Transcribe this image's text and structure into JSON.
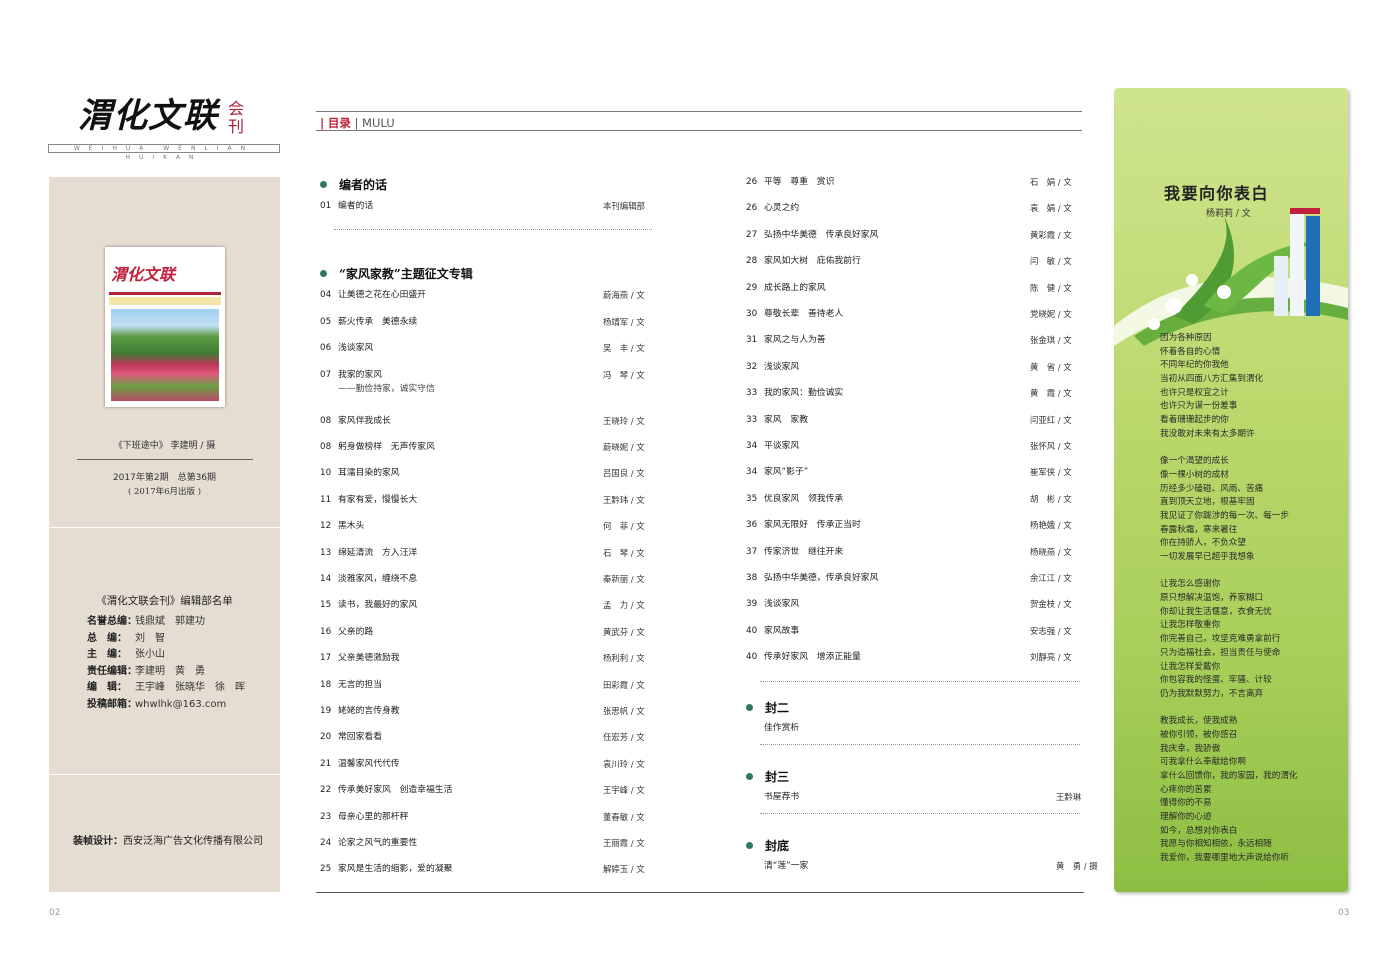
{
  "logo": {
    "main": "渭化文联",
    "side": "会刊",
    "sub": "WEIHUA WENLIAN HUIKAN"
  },
  "cover_mini": {
    "title": "渭化文联"
  },
  "sidebar": {
    "photo_credit": "《下班途中》 李建明 / 摄",
    "issue": "2017年第2期　总第36期",
    "issue_date": "( 2017年6月出版 )",
    "staff_title": "《渭化文联会刊》编辑部名单",
    "staff": [
      {
        "k": "名誉总编：",
        "v": "钱鼎斌　郭建功"
      },
      {
        "k": "总　编：",
        "v": "刘　智"
      },
      {
        "k": "主　编：",
        "v": "张小山"
      },
      {
        "k": "责任编辑：",
        "v": "李建明　黄　勇"
      },
      {
        "k": "编　辑：",
        "v": "王宇峰　张晓华　徐　晖"
      },
      {
        "k": "投稿邮箱：",
        "v": "whwlhk@163.com"
      }
    ],
    "design_label": "装帧设计：",
    "design_value": "西安泛海广告文化传播有限公司"
  },
  "header": {
    "cn": "目录",
    "en": "MULU"
  },
  "toc_left": {
    "sections": [
      {
        "title": "编者的话",
        "items": [
          {
            "no": "01",
            "title": "编者的话",
            "author": "本刊编辑部"
          }
        ]
      },
      {
        "title": "“家风家教”主题征文专辑",
        "items": [
          {
            "no": "04",
            "title": "让美德之花在心田盛开",
            "author": "蔚海燕 / 文"
          },
          {
            "no": "05",
            "title": "薪火传承　美德永续",
            "author": "杨靖军 / 文"
          },
          {
            "no": "06",
            "title": "浅谈家风",
            "author": "吴　丰 / 文"
          },
          {
            "no": "07",
            "title": "我家的家风",
            "author": "冯　琴 / 文",
            "sub": "——勤俭持家，诚实守信"
          },
          {
            "no": "08",
            "title": "家风伴我成长",
            "author": "王晓玲 / 文"
          },
          {
            "no": "08",
            "title": "躬身做榜样　无声传家风",
            "author": "蔚晓妮 / 文"
          },
          {
            "no": "10",
            "title": "耳濡目染的家风",
            "author": "吕国良 / 文"
          },
          {
            "no": "11",
            "title": "有家有爱，慢慢长大",
            "author": "王黔玮 / 文"
          },
          {
            "no": "12",
            "title": "黑木头",
            "author": "何　菲 / 文"
          },
          {
            "no": "13",
            "title": "绵延清流　方入汪洋",
            "author": "石　琴 / 文"
          },
          {
            "no": "14",
            "title": "淡雅家风，缠绕不息",
            "author": "秦新丽 / 文"
          },
          {
            "no": "15",
            "title": "读书，我最好的家风",
            "author": "孟　力 / 文"
          },
          {
            "no": "16",
            "title": "父亲的路",
            "author": "黄武芬 / 文"
          },
          {
            "no": "17",
            "title": "父亲美德激励我",
            "author": "杨利利 / 文"
          },
          {
            "no": "18",
            "title": "无言的担当",
            "author": "田彩霞 / 文"
          },
          {
            "no": "19",
            "title": "姥姥的言传身教",
            "author": "张思帆 / 文"
          },
          {
            "no": "20",
            "title": "常回家看看",
            "author": "任宏芳 / 文"
          },
          {
            "no": "21",
            "title": "温馨家风代代传",
            "author": "袁川玲 / 文"
          },
          {
            "no": "22",
            "title": "传承美好家风　创造幸福生活",
            "author": "王宇峰 / 文"
          },
          {
            "no": "23",
            "title": "母亲心里的那杆秤",
            "author": "董春敏 / 文"
          },
          {
            "no": "24",
            "title": "论家之风气的重要性",
            "author": "王丽霞 / 文"
          },
          {
            "no": "25",
            "title": "家风是生活的缩影，爱的凝聚",
            "author": "解婷玉 / 文"
          }
        ]
      }
    ]
  },
  "toc_right": {
    "items": [
      {
        "no": "26",
        "title": "平等　尊重　赏识",
        "author": "石　娟 / 文"
      },
      {
        "no": "26",
        "title": "心灵之约",
        "author": "袁　娟 / 文"
      },
      {
        "no": "27",
        "title": "弘扬中华美德　传承良好家风",
        "author": "黄彩霞 / 文"
      },
      {
        "no": "28",
        "title": "家风如大树　庇佑我前行",
        "author": "闫　敏 / 文"
      },
      {
        "no": "29",
        "title": "成长路上的家风",
        "author": "陈　健 / 文"
      },
      {
        "no": "30",
        "title": "尊敬长辈　善待老人",
        "author": "党晓妮 / 文"
      },
      {
        "no": "31",
        "title": "家风之与人为善",
        "author": "张金琪 / 文"
      },
      {
        "no": "32",
        "title": "浅谈家风",
        "author": "黄　省 / 文"
      },
      {
        "no": "33",
        "title": "我的家风：勤俭诚实",
        "author": "黄　霞 / 文"
      },
      {
        "no": "33",
        "title": "家风　家教",
        "author": "闫亚红 / 文"
      },
      {
        "no": "34",
        "title": "平谈家风",
        "author": "张怀风 / 文"
      },
      {
        "no": "34",
        "title": "家风“影子”",
        "author": "崔军侠 / 文"
      },
      {
        "no": "35",
        "title": "优良家风　领我传承",
        "author": "胡　彬 / 文"
      },
      {
        "no": "36",
        "title": "家风无限好　传承正当时",
        "author": "杨艳娥 / 文"
      },
      {
        "no": "37",
        "title": "传家济世　继往开来",
        "author": "杨晓燕 / 文"
      },
      {
        "no": "38",
        "title": "弘扬中华美德，传承良好家风",
        "author": "余江江 / 文"
      },
      {
        "no": "39",
        "title": "浅谈家风",
        "author": "贺金枝 / 文"
      },
      {
        "no": "40",
        "title": "家风故事",
        "author": "安志强 / 文"
      },
      {
        "no": "40",
        "title": "传承好家风　增添正能量",
        "author": "刘靜亮 / 文"
      }
    ],
    "sections": [
      {
        "title": "封二",
        "item": {
          "title": "佳作赏析",
          "author": ""
        }
      },
      {
        "title": "封三",
        "item": {
          "title": "书屋荐书",
          "author": "王黔琳"
        }
      },
      {
        "title": "封底",
        "item": {
          "title": "清“莲”一家",
          "author": "黄　勇 / 摄"
        }
      }
    ]
  },
  "poem": {
    "title": "我要向你表白",
    "author": "杨莉莉 / 文",
    "stanzas": [
      [
        "因为各种原因",
        "怀着各自的心情",
        "不同年纪的你我他",
        "当初从四面八方汇集到渭化",
        "也许只是权宜之计",
        "也许只为谋一份差事",
        "看着珊珊起步的你",
        "我没敢对未来有太多期许"
      ],
      [
        "像一个渴望的成长",
        "像一棵小树的成材",
        "历经多少磕碰、风雨、苦痛",
        "直到顶天立地，根基牢固",
        "我见证了你跋涉的每一次、每一步",
        "春露秋霜，寒来暑往",
        "你在持骄人，不负众望",
        "一切发展早已超乎我想象"
      ],
      [
        "让我怎么感谢你",
        "原只想解决温饱，养家糊口",
        "你却让我生活惬意，衣食无忧",
        "让我怎样敬重你",
        "你完善自己，攻坚克难勇拿前行",
        "只为造福社会，担当责任与使命",
        "让我怎样爱戴你",
        "你包容我的怪蛋、牢骚、计较",
        "仍为我默默努力，不言离弃"
      ],
      [
        "教我成长，使我成熟",
        "被你引领，被你感召",
        "我庆幸，我骄傲",
        "可我拿什么奉献给你啊",
        "拿什么回馈你，我的家园，我的渭化",
        "心疼你的苦累",
        "懂得你的不易",
        "理解你的心迹",
        "如今，总想对你表白",
        "我愿与你相知相依，永远相随",
        "我爱你，我要哪里地大声说给你听"
      ]
    ]
  },
  "pages": {
    "left": "02",
    "right": "03"
  },
  "colors": {
    "accent_red": "#c0203a",
    "section_dot": "#2f7a5a",
    "sidebar_bg": "#e5ddd2",
    "poem_green": "#bcd96e"
  }
}
